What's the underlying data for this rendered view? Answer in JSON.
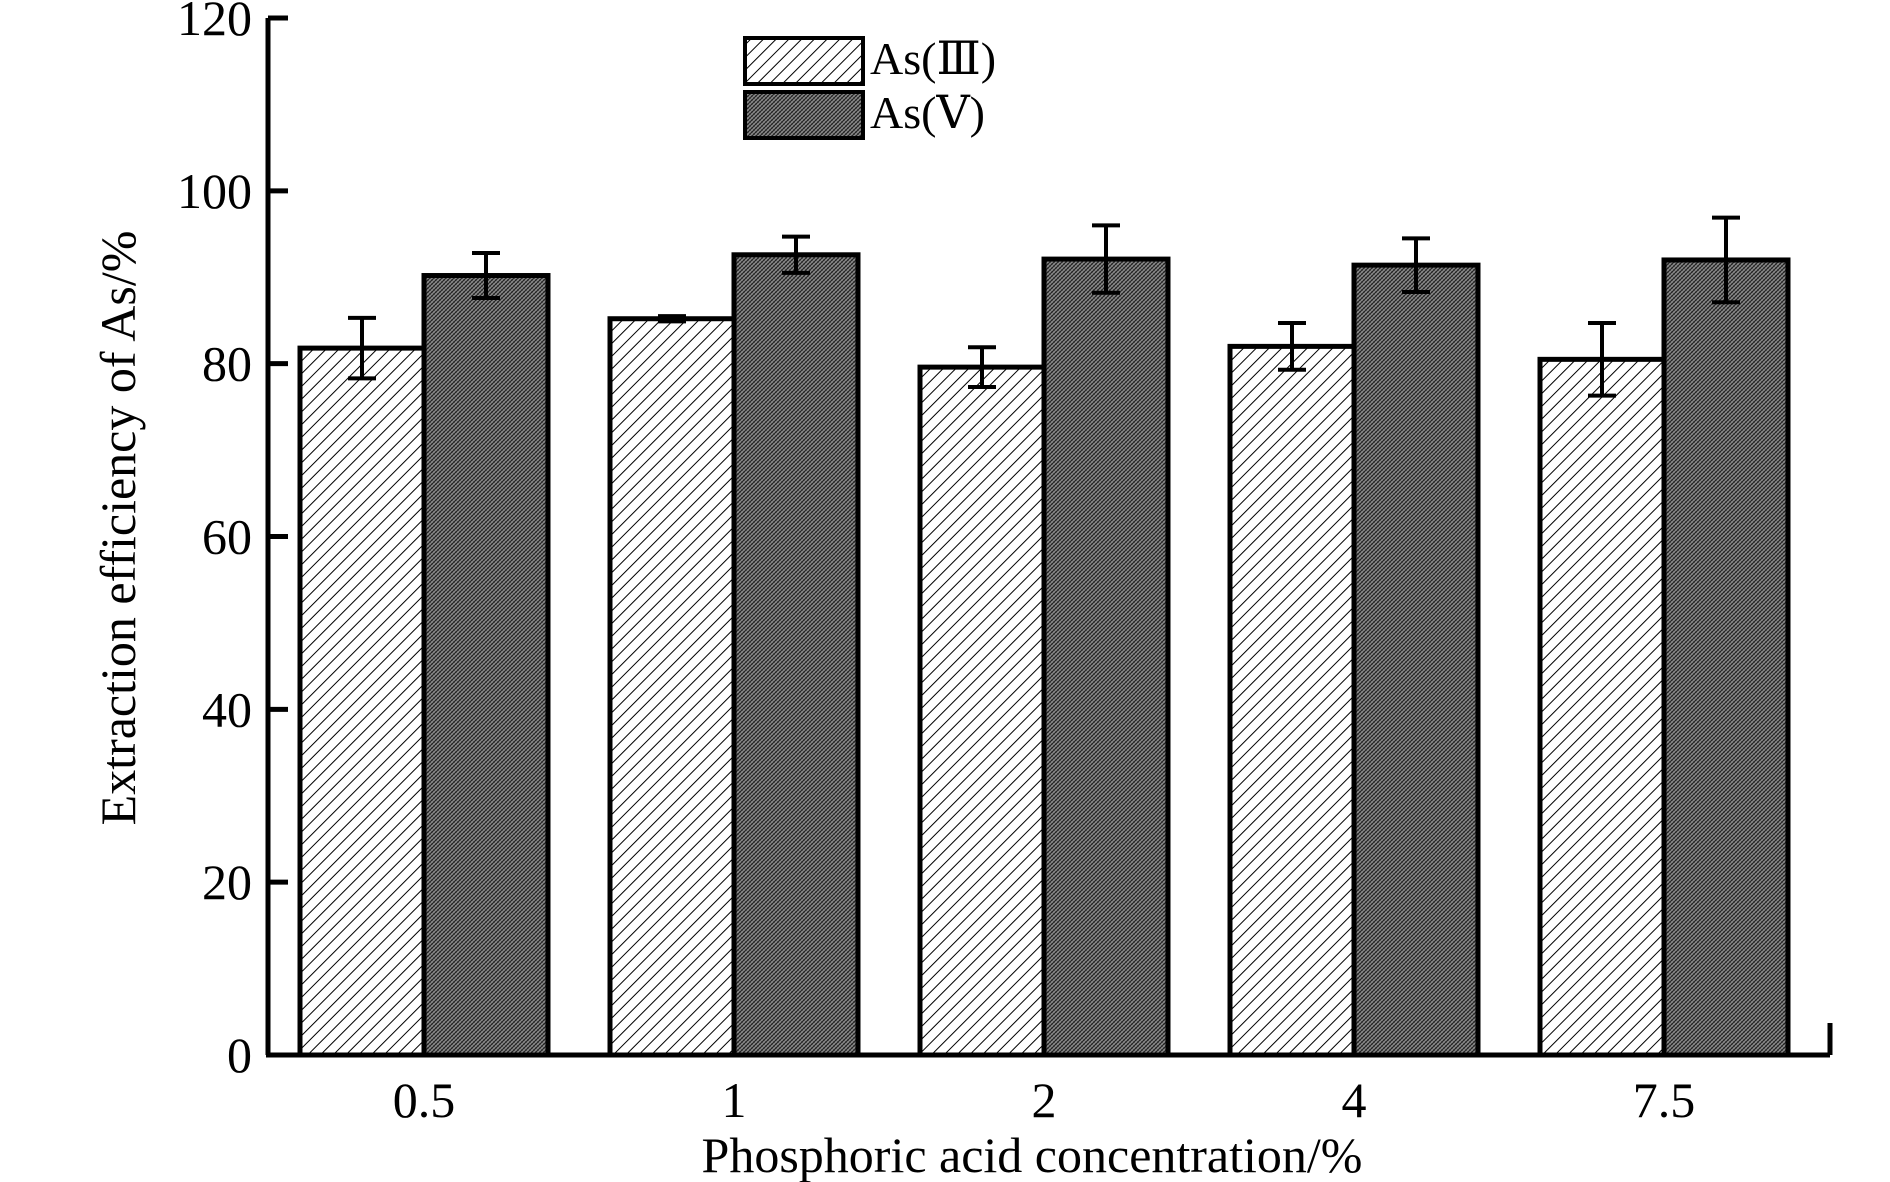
{
  "chart_data": {
    "type": "bar",
    "title": "",
    "xlabel": "Phosphoric acid concentration/%",
    "ylabel": "Extraction efficiency of As/%",
    "categories": [
      "0.5",
      "1",
      "2",
      "4",
      "7.5"
    ],
    "ylim": [
      0,
      120
    ],
    "yticks": [
      0,
      20,
      40,
      60,
      80,
      100,
      120
    ],
    "grid": false,
    "legend_position": "top-center",
    "series": [
      {
        "name": "As(Ⅲ)",
        "values": [
          81.8,
          85.2,
          79.6,
          82.0,
          80.5
        ],
        "errors": [
          3.5,
          0.3,
          2.3,
          2.7,
          4.2
        ],
        "pattern": "diagonal-hatch",
        "color": "#ffffff"
      },
      {
        "name": "As(Ⅴ)",
        "values": [
          90.2,
          92.6,
          92.1,
          91.4,
          92.0
        ],
        "errors": [
          2.6,
          2.1,
          3.9,
          3.1,
          4.9
        ],
        "pattern": "dense-crosshatch",
        "color": "#7a7a7a"
      }
    ]
  }
}
